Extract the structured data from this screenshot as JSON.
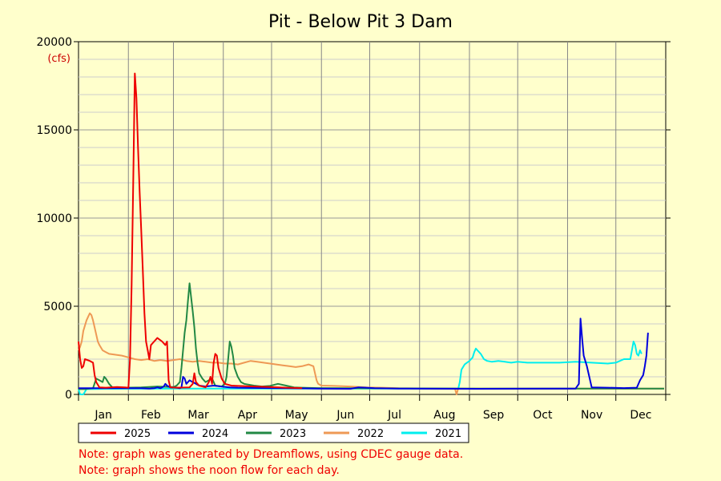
{
  "chart_data": {
    "type": "line",
    "title": "Pit - Below Pit 3 Dam",
    "ylabel_unit": "(cfs)",
    "ylim": [
      0,
      20000
    ],
    "yticks": [
      0,
      5000,
      10000,
      15000,
      20000
    ],
    "months": [
      "Jan",
      "Feb",
      "Mar",
      "Apr",
      "May",
      "Jun",
      "Jul",
      "Aug",
      "Sep",
      "Oct",
      "Nov",
      "Dec"
    ],
    "grid": true,
    "legend_placement": "bottom",
    "notes": [
      "Note: graph was generated by Dreamflows, using CDEC gauge data.",
      "Note: graph shows the noon flow for each day."
    ],
    "series": [
      {
        "name": "2025",
        "color": "#ee0000",
        "points": [
          [
            1,
            3000
          ],
          [
            2,
            2000
          ],
          [
            3,
            1500
          ],
          [
            4,
            1600
          ],
          [
            5,
            2000
          ],
          [
            8,
            1900
          ],
          [
            10,
            1800
          ],
          [
            11,
            1100
          ],
          [
            12,
            700
          ],
          [
            14,
            400
          ],
          [
            18,
            380
          ],
          [
            25,
            420
          ],
          [
            30,
            400
          ],
          [
            32,
            380
          ],
          [
            33,
            2000
          ],
          [
            34,
            6200
          ],
          [
            35,
            12000
          ],
          [
            36,
            18200
          ],
          [
            37,
            16800
          ],
          [
            38,
            14000
          ],
          [
            39,
            11500
          ],
          [
            40,
            9300
          ],
          [
            41,
            7000
          ],
          [
            42,
            4600
          ],
          [
            43,
            3000
          ],
          [
            44,
            2500
          ],
          [
            45,
            2000
          ],
          [
            46,
            2800
          ],
          [
            48,
            3000
          ],
          [
            50,
            3200
          ],
          [
            53,
            3000
          ],
          [
            55,
            2800
          ],
          [
            56,
            3000
          ],
          [
            57,
            800
          ],
          [
            58,
            400
          ],
          [
            62,
            380
          ],
          [
            70,
            400
          ],
          [
            72,
            600
          ],
          [
            73,
            1200
          ],
          [
            74,
            700
          ],
          [
            76,
            500
          ],
          [
            80,
            400
          ],
          [
            82,
            700
          ],
          [
            83,
            1000
          ],
          [
            84,
            600
          ],
          [
            85,
            1800
          ],
          [
            86,
            2300
          ],
          [
            87,
            2200
          ],
          [
            88,
            1500
          ],
          [
            90,
            900
          ],
          [
            92,
            600
          ],
          [
            96,
            500
          ],
          [
            100,
            480
          ],
          [
            110,
            450
          ],
          [
            120,
            420
          ],
          [
            130,
            380
          ],
          [
            140,
            360
          ]
        ]
      },
      {
        "name": "2024",
        "color": "#0000dd",
        "points": [
          [
            1,
            350
          ],
          [
            20,
            350
          ],
          [
            40,
            350
          ],
          [
            45,
            330
          ],
          [
            48,
            350
          ],
          [
            50,
            400
          ],
          [
            52,
            350
          ],
          [
            54,
            450
          ],
          [
            55,
            600
          ],
          [
            56,
            500
          ],
          [
            58,
            400
          ],
          [
            62,
            380
          ],
          [
            64,
            350
          ],
          [
            65,
            400
          ],
          [
            66,
            1000
          ],
          [
            67,
            900
          ],
          [
            68,
            600
          ],
          [
            70,
            800
          ],
          [
            72,
            700
          ],
          [
            74,
            600
          ],
          [
            76,
            500
          ],
          [
            80,
            450
          ],
          [
            85,
            500
          ],
          [
            90,
            450
          ],
          [
            95,
            400
          ],
          [
            100,
            380
          ],
          [
            110,
            370
          ],
          [
            120,
            360
          ],
          [
            130,
            350
          ],
          [
            140,
            340
          ],
          [
            150,
            330
          ],
          [
            170,
            320
          ],
          [
            175,
            400
          ],
          [
            180,
            380
          ],
          [
            185,
            350
          ],
          [
            200,
            330
          ],
          [
            250,
            320
          ],
          [
            300,
            330
          ],
          [
            310,
            330
          ],
          [
            312,
            600
          ],
          [
            313,
            4300
          ],
          [
            314,
            3200
          ],
          [
            315,
            2200
          ],
          [
            316,
            1900
          ],
          [
            317,
            1600
          ],
          [
            318,
            1200
          ],
          [
            320,
            400
          ],
          [
            330,
            380
          ],
          [
            340,
            360
          ],
          [
            348,
            380
          ],
          [
            350,
            800
          ],
          [
            352,
            1100
          ],
          [
            353,
            1600
          ],
          [
            354,
            2200
          ],
          [
            355,
            3500
          ]
        ]
      },
      {
        "name": "2023",
        "color": "#228844",
        "points": [
          [
            1,
            300
          ],
          [
            5,
            300
          ],
          [
            10,
            350
          ],
          [
            12,
            900
          ],
          [
            14,
            800
          ],
          [
            16,
            700
          ],
          [
            17,
            1000
          ],
          [
            18,
            900
          ],
          [
            20,
            600
          ],
          [
            22,
            400
          ],
          [
            30,
            380
          ],
          [
            40,
            400
          ],
          [
            50,
            450
          ],
          [
            60,
            420
          ],
          [
            62,
            500
          ],
          [
            64,
            700
          ],
          [
            65,
            1500
          ],
          [
            66,
            2500
          ],
          [
            67,
            3500
          ],
          [
            68,
            4200
          ],
          [
            69,
            5300
          ],
          [
            70,
            6300
          ],
          [
            71,
            5500
          ],
          [
            72,
            4700
          ],
          [
            73,
            3800
          ],
          [
            74,
            2600
          ],
          [
            75,
            1800
          ],
          [
            76,
            1200
          ],
          [
            78,
            900
          ],
          [
            80,
            700
          ],
          [
            82,
            800
          ],
          [
            84,
            900
          ],
          [
            85,
            700
          ],
          [
            86,
            500
          ],
          [
            90,
            450
          ],
          [
            92,
            600
          ],
          [
            93,
            1000
          ],
          [
            94,
            2000
          ],
          [
            95,
            3000
          ],
          [
            96,
            2700
          ],
          [
            97,
            2200
          ],
          [
            98,
            1500
          ],
          [
            100,
            1000
          ],
          [
            102,
            700
          ],
          [
            104,
            600
          ],
          [
            110,
            500
          ],
          [
            115,
            450
          ],
          [
            120,
            480
          ],
          [
            125,
            600
          ],
          [
            130,
            500
          ],
          [
            135,
            400
          ],
          [
            140,
            380
          ],
          [
            150,
            360
          ],
          [
            200,
            340
          ],
          [
            250,
            330
          ],
          [
            300,
            330
          ],
          [
            350,
            330
          ],
          [
            365,
            330
          ]
        ]
      },
      {
        "name": "2022",
        "color": "#ee9955",
        "points": [
          [
            1,
            2500
          ],
          [
            2,
            2700
          ],
          [
            3,
            3000
          ],
          [
            4,
            3600
          ],
          [
            5,
            3900
          ],
          [
            6,
            4200
          ],
          [
            7,
            4400
          ],
          [
            8,
            4600
          ],
          [
            9,
            4500
          ],
          [
            10,
            4200
          ],
          [
            11,
            3800
          ],
          [
            12,
            3400
          ],
          [
            13,
            3000
          ],
          [
            14,
            2800
          ],
          [
            16,
            2500
          ],
          [
            18,
            2400
          ],
          [
            20,
            2300
          ],
          [
            24,
            2250
          ],
          [
            28,
            2200
          ],
          [
            32,
            2100
          ],
          [
            36,
            2000
          ],
          [
            40,
            1950
          ],
          [
            44,
            2000
          ],
          [
            48,
            1900
          ],
          [
            52,
            1950
          ],
          [
            56,
            1900
          ],
          [
            60,
            1950
          ],
          [
            64,
            2000
          ],
          [
            68,
            1900
          ],
          [
            72,
            1850
          ],
          [
            76,
            1900
          ],
          [
            80,
            1850
          ],
          [
            84,
            1800
          ],
          [
            88,
            1800
          ],
          [
            92,
            1750
          ],
          [
            96,
            1750
          ],
          [
            100,
            1700
          ],
          [
            104,
            1800
          ],
          [
            108,
            1900
          ],
          [
            112,
            1850
          ],
          [
            116,
            1800
          ],
          [
            120,
            1750
          ],
          [
            124,
            1700
          ],
          [
            128,
            1650
          ],
          [
            132,
            1600
          ],
          [
            136,
            1550
          ],
          [
            140,
            1600
          ],
          [
            144,
            1700
          ],
          [
            147,
            1600
          ],
          [
            148,
            1200
          ],
          [
            149,
            800
          ],
          [
            150,
            600
          ],
          [
            152,
            500
          ],
          [
            160,
            480
          ],
          [
            170,
            450
          ],
          [
            180,
            400
          ],
          [
            190,
            380
          ],
          [
            200,
            350
          ],
          [
            225,
            330
          ],
          [
            235,
            330
          ],
          [
            236,
            0
          ],
          [
            237,
            330
          ],
          [
            250,
            330
          ],
          [
            300,
            330
          ],
          [
            365,
            330
          ]
        ]
      },
      {
        "name": "2021",
        "color": "#00eeee",
        "points": [
          [
            1,
            300
          ],
          [
            2,
            0
          ],
          [
            4,
            0
          ],
          [
            6,
            300
          ],
          [
            20,
            320
          ],
          [
            60,
            330
          ],
          [
            100,
            330
          ],
          [
            150,
            330
          ],
          [
            200,
            330
          ],
          [
            230,
            330
          ],
          [
            236,
            330
          ],
          [
            237,
            300
          ],
          [
            238,
            700
          ],
          [
            239,
            1400
          ],
          [
            241,
            1700
          ],
          [
            244,
            1900
          ],
          [
            246,
            2100
          ],
          [
            247,
            2400
          ],
          [
            248,
            2600
          ],
          [
            249,
            2500
          ],
          [
            251,
            2300
          ],
          [
            253,
            2000
          ],
          [
            255,
            1900
          ],
          [
            258,
            1850
          ],
          [
            262,
            1900
          ],
          [
            266,
            1850
          ],
          [
            270,
            1800
          ],
          [
            274,
            1850
          ],
          [
            280,
            1800
          ],
          [
            290,
            1800
          ],
          [
            300,
            1800
          ],
          [
            310,
            1850
          ],
          [
            320,
            1800
          ],
          [
            330,
            1750
          ],
          [
            335,
            1800
          ],
          [
            340,
            2000
          ],
          [
            344,
            2000
          ],
          [
            345,
            2500
          ],
          [
            346,
            3000
          ],
          [
            347,
            2800
          ],
          [
            348,
            2300
          ],
          [
            349,
            2200
          ],
          [
            350,
            2500
          ],
          [
            351,
            2300
          ]
        ]
      }
    ]
  }
}
